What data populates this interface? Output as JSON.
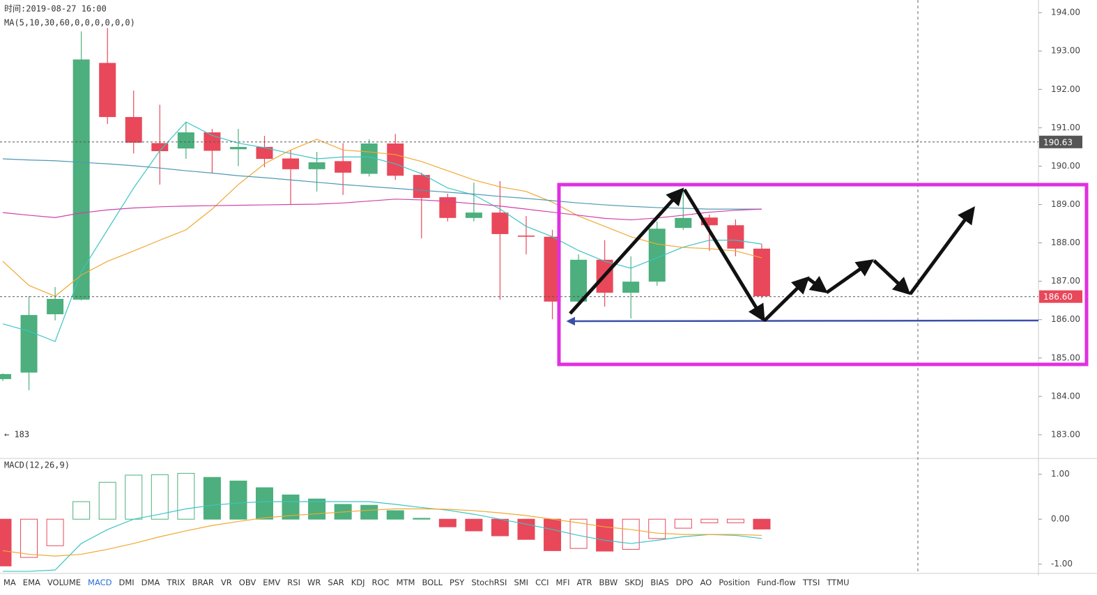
{
  "header": {
    "time_label": "时间:2019-08-27 16:00"
  },
  "chart_data": [
    {
      "type": "candlestick",
      "title": "MA(5,10,30,60,0,0,0,0,0,0)",
      "annotation": "← 183",
      "up_color": "#4caf7d",
      "down_color": "#e8485a",
      "open": [
        184.45,
        184.62,
        186.14,
        186.52,
        192.69,
        191.28,
        190.6,
        190.46,
        190.88,
        190.44,
        190.5,
        190.2,
        189.92,
        190.13,
        189.8,
        190.59,
        189.77,
        189.19,
        188.65,
        188.79,
        188.19,
        188.16,
        186.47,
        187.56,
        186.7,
        186.99,
        188.39,
        188.66,
        188.46,
        187.85
      ],
      "high": [
        184.6,
        186.61,
        186.85,
        193.51,
        193.6,
        191.97,
        191.6,
        191.15,
        190.97,
        190.97,
        190.79,
        190.42,
        190.37,
        190.6,
        190.7,
        190.84,
        189.83,
        189.28,
        189.57,
        189.61,
        188.7,
        188.34,
        187.7,
        188.07,
        187.65,
        188.56,
        189.43,
        188.74,
        188.61,
        187.97
      ],
      "low": [
        184.4,
        184.16,
        185.98,
        186.5,
        191.1,
        190.33,
        189.52,
        190.19,
        189.83,
        190.0,
        189.97,
        189.0,
        189.34,
        189.25,
        189.73,
        189.64,
        188.12,
        188.56,
        188.56,
        186.52,
        187.7,
        186.01,
        186.34,
        186.34,
        186.03,
        186.88,
        188.34,
        187.79,
        187.65,
        186.56
      ],
      "close": [
        184.58,
        186.12,
        186.54,
        192.78,
        191.28,
        190.61,
        190.39,
        190.88,
        190.4,
        190.5,
        190.19,
        189.92,
        190.1,
        189.83,
        190.59,
        189.75,
        189.17,
        188.65,
        188.79,
        188.23,
        188.16,
        186.47,
        187.56,
        186.7,
        186.99,
        188.37,
        188.65,
        188.46,
        187.85,
        186.61
      ],
      "series": [
        {
          "color": "#3cc4c4",
          "values": [
            185.89,
            185.7,
            185.43,
            187.25,
            188.34,
            189.43,
            190.4,
            191.15,
            190.8,
            190.6,
            190.48,
            190.33,
            190.19,
            190.24,
            190.24,
            190.06,
            189.8,
            189.43,
            189.25,
            188.88,
            188.43,
            188.16,
            187.8,
            187.52,
            187.34,
            187.61,
            187.89,
            188.07,
            188.07,
            187.97
          ]
        },
        {
          "color": "#f0a830",
          "values": [
            187.52,
            186.89,
            186.61,
            187.16,
            187.52,
            187.79,
            188.07,
            188.34,
            188.88,
            189.52,
            190.06,
            190.42,
            190.7,
            190.42,
            190.37,
            190.3,
            190.12,
            189.88,
            189.64,
            189.46,
            189.34,
            189.06,
            188.7,
            188.43,
            188.16,
            187.97,
            187.88,
            187.85,
            187.79,
            187.61
          ]
        },
        {
          "color": "#4e98b4",
          "values": [
            190.19,
            190.16,
            190.14,
            190.1,
            190.06,
            190.01,
            189.95,
            189.88,
            189.82,
            189.75,
            189.7,
            189.64,
            189.58,
            189.52,
            189.47,
            189.42,
            189.37,
            189.32,
            189.27,
            189.21,
            189.16,
            189.1,
            189.04,
            188.99,
            188.95,
            188.92,
            188.9,
            188.88,
            188.88,
            188.88
          ]
        },
        {
          "color": "#d040a8",
          "values": [
            188.79,
            188.72,
            188.66,
            188.78,
            188.86,
            188.91,
            188.94,
            188.96,
            188.97,
            188.98,
            188.99,
            189.0,
            189.01,
            189.04,
            189.09,
            189.14,
            189.12,
            189.08,
            189.02,
            188.96,
            188.88,
            188.8,
            188.72,
            188.64,
            188.6,
            188.65,
            188.72,
            188.8,
            188.85,
            188.88
          ]
        }
      ],
      "ylim": [
        182.4,
        194.33
      ],
      "yticks": [
        {
          "value": 183,
          "label": "183.00"
        },
        {
          "value": 184,
          "label": "184.00"
        },
        {
          "value": 185,
          "label": "185.00"
        },
        {
          "value": 186,
          "label": "186.00"
        },
        {
          "value": 187,
          "label": "187.00"
        },
        {
          "value": 188,
          "label": "188.00"
        },
        {
          "value": 189,
          "label": "189.00"
        },
        {
          "value": 190,
          "label": "190.00"
        },
        {
          "value": 191,
          "label": "191.00"
        },
        {
          "value": 192,
          "label": "192.00"
        },
        {
          "value": 193,
          "label": "193.00"
        },
        {
          "value": 194,
          "label": "194.00"
        }
      ],
      "price_markers": [
        {
          "value": 190.63,
          "label": "190.63",
          "color": "#555555"
        },
        {
          "value": 186.6,
          "label": "186.60",
          "color": "#e8485a"
        }
      ]
    },
    {
      "type": "macd",
      "title": "MACD(12,26,9)",
      "up_color": "#4caf7d",
      "down_color": "#e8485a",
      "values": [
        -1.04,
        -0.85,
        -0.59,
        0.39,
        0.82,
        0.98,
        0.99,
        1.02,
        0.93,
        0.85,
        0.7,
        0.54,
        0.45,
        0.33,
        0.31,
        0.19,
        0.02,
        -0.17,
        -0.26,
        -0.37,
        -0.45,
        -0.7,
        -0.65,
        -0.71,
        -0.67,
        -0.43,
        -0.2,
        -0.08,
        -0.08,
        -0.22
      ],
      "series": [
        {
          "color": "#3cc4c4",
          "values": [
            -1.16,
            -1.16,
            -1.13,
            -0.54,
            -0.23,
            0,
            0.11,
            0.23,
            0.31,
            0.36,
            0.39,
            0.39,
            0.39,
            0.39,
            0.39,
            0.33,
            0.26,
            0.2,
            0.11,
            0,
            -0.11,
            -0.23,
            -0.36,
            -0.47,
            -0.54,
            -0.47,
            -0.39,
            -0.34,
            -0.36,
            -0.43
          ]
        },
        {
          "color": "#f0a830",
          "values": [
            -0.7,
            -0.78,
            -0.82,
            -0.78,
            -0.67,
            -0.54,
            -0.39,
            -0.26,
            -0.14,
            -0.05,
            0.03,
            0.08,
            0.12,
            0.16,
            0.2,
            0.23,
            0.23,
            0.22,
            0.19,
            0.14,
            0.08,
            0,
            -0.08,
            -0.17,
            -0.23,
            -0.31,
            -0.34,
            -0.34,
            -0.34,
            -0.36
          ]
        }
      ],
      "ylim": [
        -1.19,
        1.32
      ],
      "yticks": [
        {
          "value": -1,
          "label": "-1.00"
        },
        {
          "value": 0,
          "label": "0.00"
        },
        {
          "value": 1,
          "label": "1.00"
        }
      ]
    }
  ],
  "toolbar": {
    "active": 3,
    "tabs": [
      "MA",
      "EMA",
      "VOLUME",
      "MACD",
      "DMI",
      "DMA",
      "TRIX",
      "BRAR",
      "VR",
      "OBV",
      "EMV",
      "RSI",
      "WR",
      "SAR",
      "KDJ",
      "ROC",
      "MTM",
      "BOLL",
      "PSY",
      "StochRSI",
      "SMI",
      "CCI",
      "MFI",
      "ATR",
      "BBW",
      "SKDJ",
      "BIAS",
      "DPO",
      "AO",
      "Position",
      "Fund-flow",
      "TTSI",
      "TTMU"
    ]
  }
}
